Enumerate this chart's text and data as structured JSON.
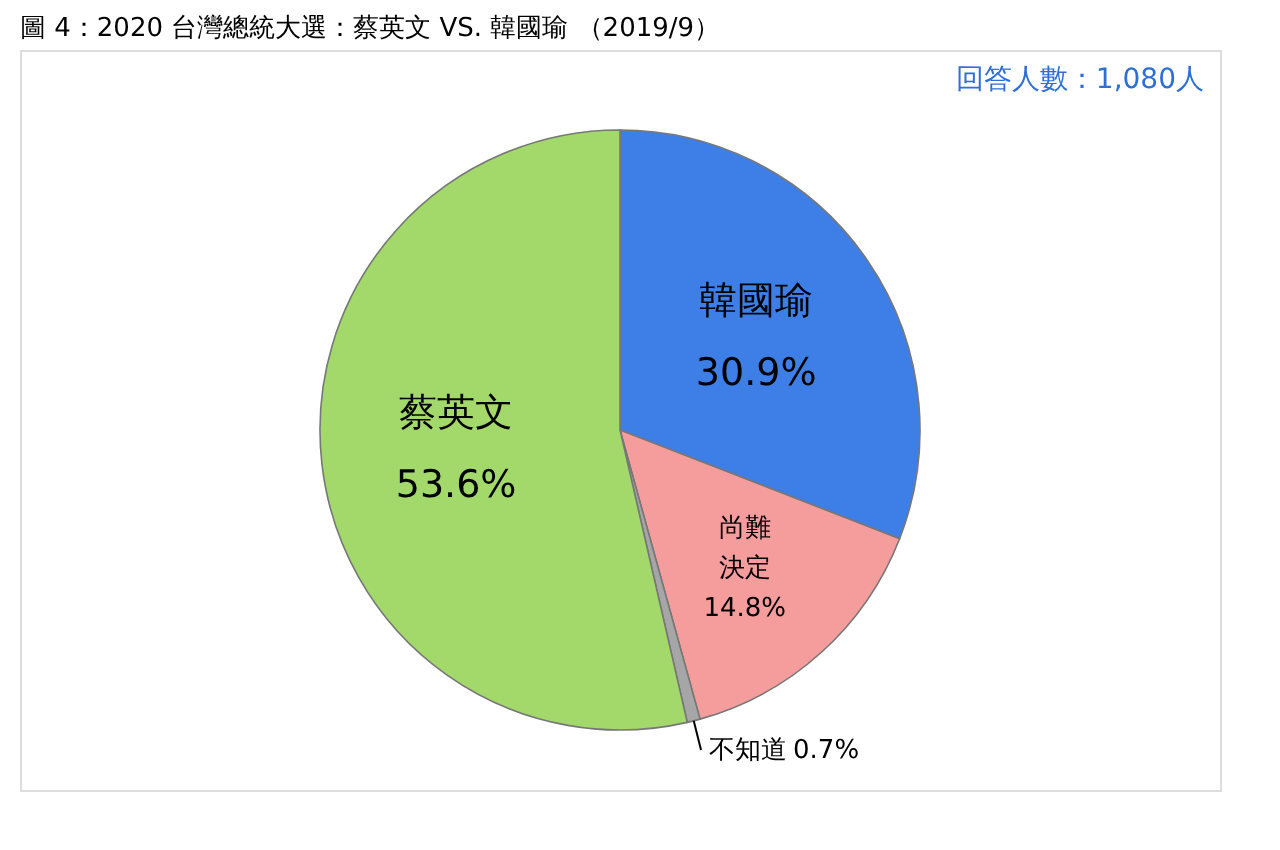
{
  "chart_data": {
    "type": "pie",
    "title": "圖 4：2020 台灣總統大選：蔡英文 VS. 韓國瑜 （2019/9）",
    "categories": [
      "韓國瑜",
      "尚難決定",
      "不知道",
      "蔡英文"
    ],
    "values": [
      30.9,
      14.8,
      0.7,
      53.6
    ],
    "colors": [
      "#3d7fe6",
      "#f59c9c",
      "#a6a6a6",
      "#a3d96b"
    ],
    "value_labels": [
      "30.9%",
      "14.8%",
      "0.7%",
      "53.6%"
    ],
    "annotations": [
      "回答人數：1,080人"
    ],
    "legend": false
  }
}
